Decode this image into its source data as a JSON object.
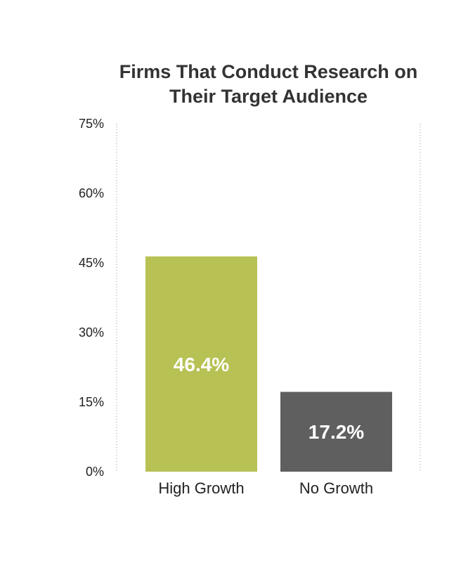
{
  "chart_data": {
    "type": "bar",
    "title": "Firms That Conduct Research on Their Target Audience",
    "title_lines": [
      "Firms That Conduct Research on",
      "Their Target Audience"
    ],
    "categories": [
      "High Growth",
      "No Growth"
    ],
    "values": [
      46.4,
      17.2
    ],
    "data_labels": [
      "46.4%",
      "17.2%"
    ],
    "bar_colors": [
      "#b7c154",
      "#5f5f5f"
    ],
    "ylim": [
      0,
      75
    ],
    "yticks": [
      0,
      15,
      30,
      45,
      60,
      75
    ],
    "ytick_labels": [
      "0%",
      "15%",
      "30%",
      "45%",
      "60%",
      "75%"
    ],
    "xlabel": "",
    "ylabel": "",
    "grid": false,
    "legend": "none"
  }
}
